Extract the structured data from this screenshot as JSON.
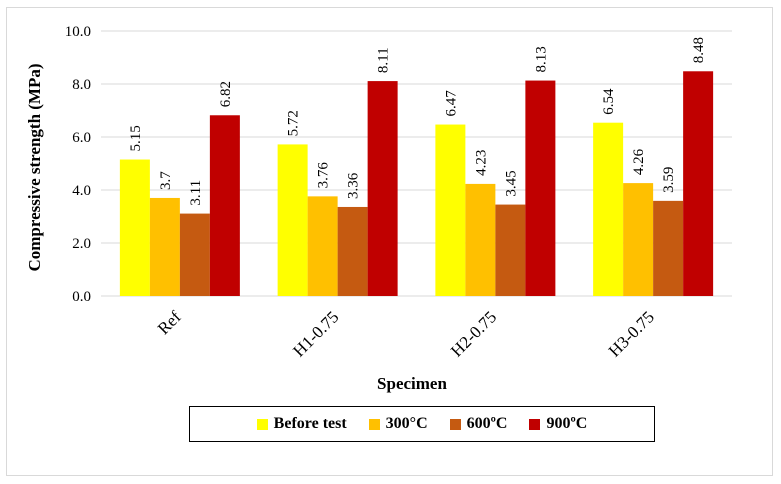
{
  "chart_data": {
    "type": "bar",
    "title": "",
    "xlabel": "Specimen",
    "ylabel": "Compressive strength (MPa)",
    "ylim": [
      0,
      10
    ],
    "yticks": [
      "0.0",
      "2.0",
      "4.0",
      "6.0",
      "8.0",
      "10.0"
    ],
    "categories": [
      "Ref",
      "H1-0.75",
      "H2-0.75",
      "H3-0.75"
    ],
    "series": [
      {
        "name": "Before test",
        "color": "#ffff00",
        "values": [
          5.15,
          5.72,
          6.47,
          6.54
        ],
        "labels": [
          "5.15",
          "5.72",
          "6.47",
          "6.54"
        ]
      },
      {
        "name": "300°C",
        "color": "#ffc000",
        "values": [
          3.7,
          3.76,
          4.23,
          4.26
        ],
        "labels": [
          "3.7",
          "3.76",
          "4.23",
          "4.26"
        ]
      },
      {
        "name": "600ºC",
        "color": "#c55a11",
        "values": [
          3.11,
          3.36,
          3.45,
          3.59
        ],
        "labels": [
          "3.11",
          "3.36",
          "3.45",
          "3.59"
        ]
      },
      {
        "name": "900ºC",
        "color": "#c00000",
        "values": [
          6.82,
          8.11,
          8.13,
          8.48
        ],
        "labels": [
          "6.82",
          "8.11",
          "8.13",
          "8.48"
        ]
      }
    ],
    "grid": true,
    "legend_position": "bottom"
  }
}
